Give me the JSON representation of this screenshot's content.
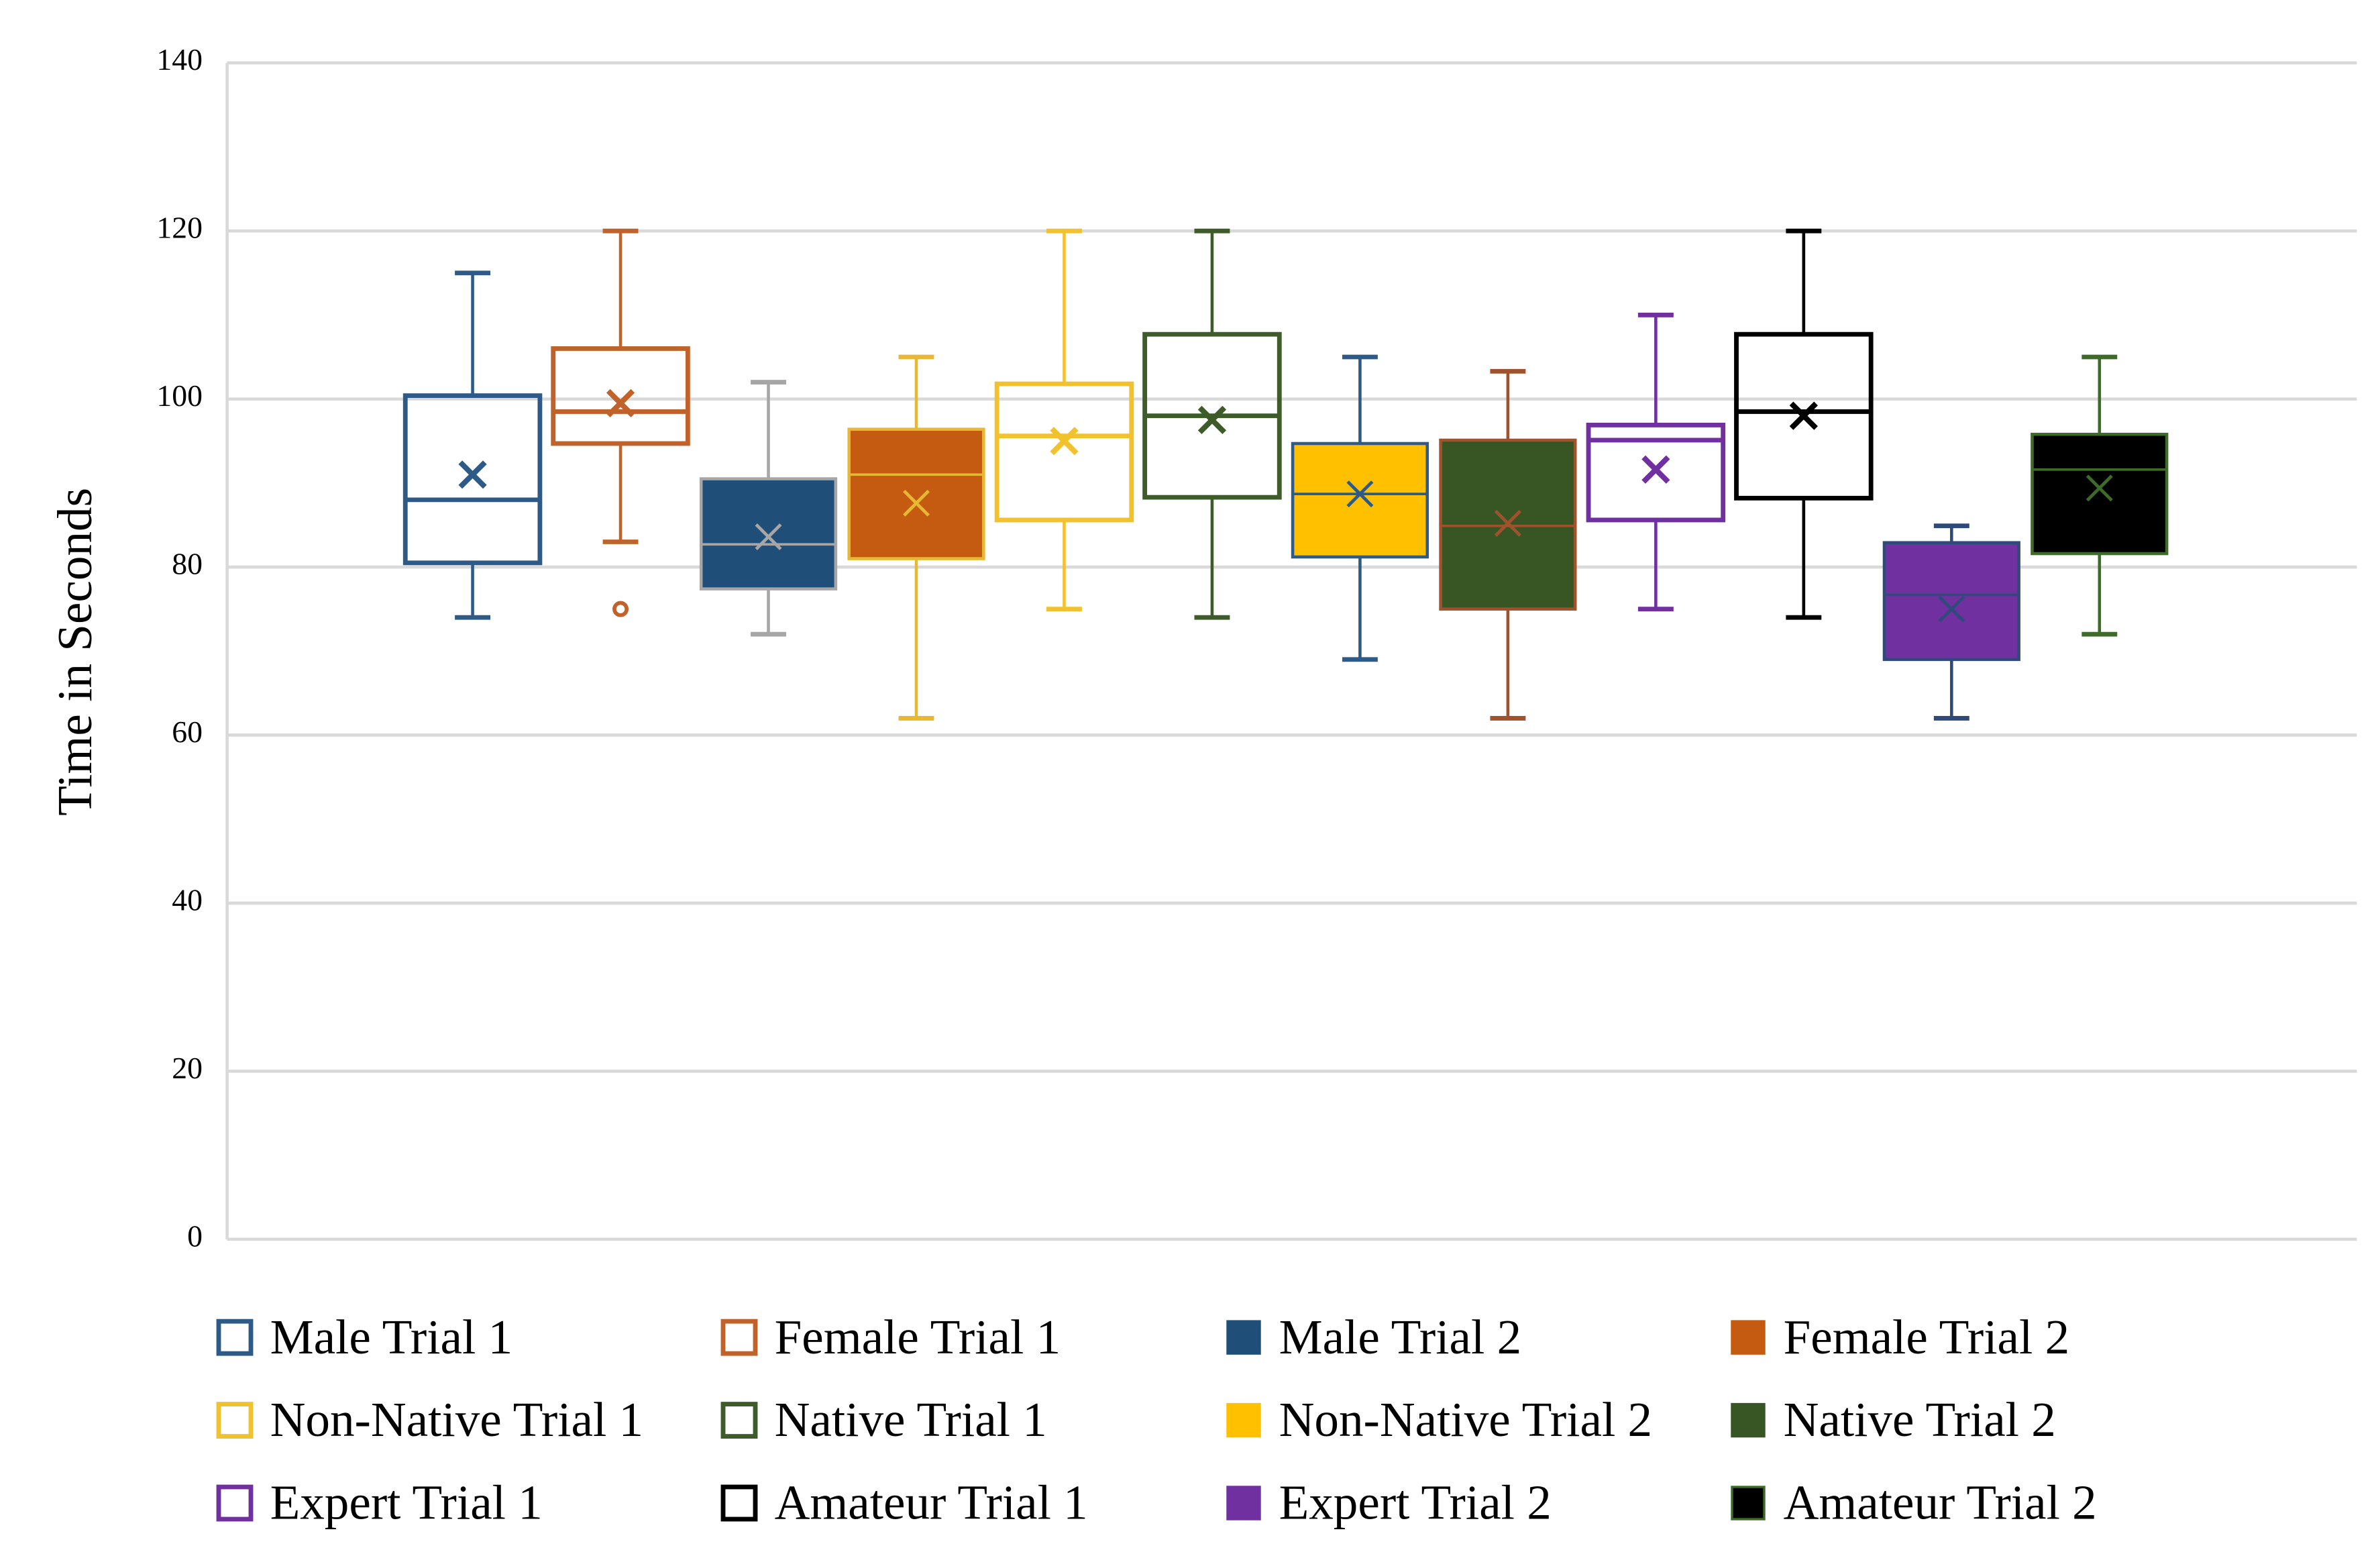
{
  "chart_data": {
    "type": "box",
    "y_label": "Time in Seconds",
    "ylim": [
      0,
      140
    ],
    "yticks": [
      0,
      20,
      40,
      60,
      80,
      100,
      120,
      140
    ],
    "grid": true,
    "legend": "bottom",
    "series": [
      {
        "name": "Male Trial 1",
        "color": "#2e5a87",
        "filled": false,
        "line_color": "#2e5a87",
        "min": 74,
        "q1": 80.5,
        "median": 88,
        "q3": 100.4,
        "max": 115,
        "mean": 91,
        "outliers": []
      },
      {
        "name": "Female Trial 1",
        "color": "#c0622a",
        "filled": false,
        "line_color": "#c0622a",
        "min": 83,
        "q1": 94.7,
        "median": 98.5,
        "q3": 106,
        "max": 120,
        "mean": 99.5,
        "outliers": [
          75
        ]
      },
      {
        "name": "Male Trial 2",
        "color": "#1f4e79",
        "filled": true,
        "line_color": "#a6a6a6",
        "min": 72,
        "q1": 77.4,
        "median": 82.7,
        "q3": 90.5,
        "max": 102,
        "mean": 83.6,
        "outliers": []
      },
      {
        "name": "Female Trial 2",
        "color": "#c55a11",
        "filled": true,
        "line_color": "#e6b833",
        "min": 62,
        "q1": 81,
        "median": 91,
        "q3": 96.4,
        "max": 105,
        "mean": 87.6,
        "outliers": []
      },
      {
        "name": "Non-Native Trial 1",
        "color": "#f2c12e",
        "filled": false,
        "line_color": "#f2c12e",
        "min": 75,
        "q1": 85.6,
        "median": 95.6,
        "q3": 101.8,
        "max": 120,
        "mean": 95,
        "outliers": []
      },
      {
        "name": "Native Trial 1",
        "color": "#3e5c2a",
        "filled": false,
        "line_color": "#3e5c2a",
        "min": 74,
        "q1": 88.3,
        "median": 98,
        "q3": 107.7,
        "max": 120,
        "mean": 97.5,
        "outliers": []
      },
      {
        "name": "Non-Native Trial 2",
        "color": "#ffc000",
        "filled": true,
        "line_color": "#2e5a87",
        "min": 69,
        "q1": 81.2,
        "median": 88.7,
        "q3": 94.7,
        "max": 105,
        "mean": 88.7,
        "outliers": []
      },
      {
        "name": "Native Trial 2",
        "color": "#375623",
        "filled": true,
        "line_color": "#a0522d",
        "min": 62,
        "q1": 75,
        "median": 84.9,
        "q3": 95.1,
        "max": 103.3,
        "mean": 85.2,
        "outliers": []
      },
      {
        "name": "Expert Trial 1",
        "color": "#7030a0",
        "filled": false,
        "line_color": "#7030a0",
        "min": 75,
        "q1": 85.6,
        "median": 95.1,
        "q3": 96.9,
        "max": 110,
        "mean": 91.6,
        "outliers": []
      },
      {
        "name": "Amateur Trial 1",
        "color": "#000000",
        "filled": false,
        "line_color": "#000000",
        "min": 74,
        "q1": 88.2,
        "median": 98.5,
        "q3": 107.7,
        "max": 120,
        "mean": 98,
        "outliers": []
      },
      {
        "name": "Expert Trial 2",
        "color": "#7030a0",
        "filled": true,
        "line_color": "#2e4a7a",
        "min": 62,
        "q1": 69,
        "median": 76.7,
        "q3": 82.9,
        "max": 84.9,
        "mean": 75,
        "outliers": []
      },
      {
        "name": "Amateur Trial 2",
        "color": "#000000",
        "filled": true,
        "line_color": "#3e6b2a",
        "min": 72,
        "q1": 81.6,
        "median": 91.6,
        "q3": 95.8,
        "max": 105,
        "mean": 89.4,
        "outliers": []
      }
    ]
  }
}
